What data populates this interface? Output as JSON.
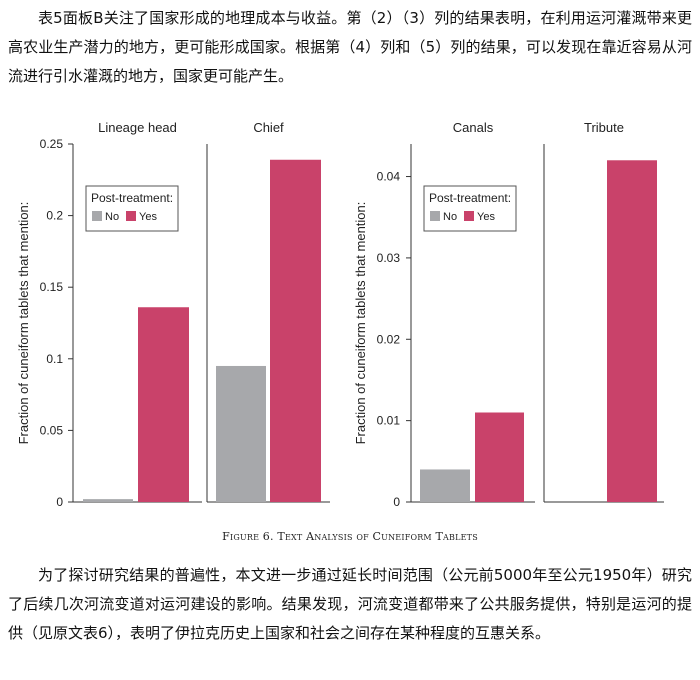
{
  "text": {
    "para_top": "表5面板B关注了国家形成的地理成本与收益。第（2）（3）列的结果表明，在利用运河灌溉带来更高农业生产潜力的地方，更可能形成国家。根据第（4）列和（5）列的结果，可以发现在靠近容易从河流进行引水灌溉的地方，国家更可能产生。",
    "caption": "Figure 6. Text Analysis of Cuneiform Tablets",
    "para_bottom": "为了探讨研究结果的普遍性，本文进一步通过延长时间范围（公元前5000年至公元1950年）研究了后续几次河流变道对运河建设的影响。结果发现，河流变道都带来了公共服务提供，特别是运河的提供（见原文表6），表明了伊拉克历史上国家和社会之间存在某种程度的互惠关系。"
  },
  "chart_data": [
    {
      "type": "bar",
      "ylabel": "Fraction of cuneiform tablets that mention:",
      "ylim": [
        0,
        0.25
      ],
      "yticks": [
        0,
        0.05,
        0.1,
        0.15,
        0.2,
        0.25
      ],
      "ytick_labels": [
        "0",
        "0.05",
        "0.1",
        "0.15",
        "0.2",
        "0.25"
      ],
      "legend": {
        "title": "Post-treatment:",
        "entries": [
          "No",
          "Yes"
        ],
        "placement": "top-left"
      },
      "colors": {
        "No": "#a7a8ab",
        "Yes": "#c9426a"
      },
      "panels": [
        {
          "title": "Lineage head",
          "values": {
            "No": 0.002,
            "Yes": 0.136
          }
        },
        {
          "title": "Chief",
          "values": {
            "No": 0.095,
            "Yes": 0.239
          }
        }
      ]
    },
    {
      "type": "bar",
      "ylabel": "Fraction of cuneiform tablets that mention:",
      "ylim": [
        0,
        0.044
      ],
      "yticks": [
        0,
        0.01,
        0.02,
        0.03,
        0.04
      ],
      "ytick_labels": [
        "0",
        "0.01",
        "0.02",
        "0.03",
        "0.04"
      ],
      "legend": {
        "title": "Post-treatment:",
        "entries": [
          "No",
          "Yes"
        ],
        "placement": "top-left"
      },
      "colors": {
        "No": "#a7a8ab",
        "Yes": "#c9426a"
      },
      "panels": [
        {
          "title": "Canals",
          "values": {
            "No": 0.004,
            "Yes": 0.011
          }
        },
        {
          "title": "Tribute",
          "values": {
            "No": 0.0,
            "Yes": 0.042
          }
        }
      ]
    }
  ]
}
